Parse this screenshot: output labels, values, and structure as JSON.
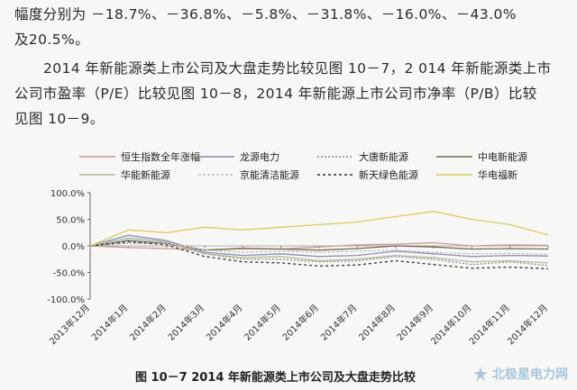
{
  "text": {
    "line1": "幅度分别为 －18.7%、－36.8%、－5.8%、－31.8%、－16.0%、－43.0%",
    "line2": "及20.5%。",
    "line3": "2014 年新能源类上市公司及大盘走势比较见图 10－7，2 014 年新能源类上市",
    "line4": "公司市盈率（P/E）比较见图 10－8，2014 年新能源上市公司市净率（P/B）比较",
    "line5": "见图 10－9。"
  },
  "figure": {
    "caption": "图 10－7   2014 年新能源类上市公司及大盘走势比较"
  },
  "watermark": {
    "label": "北极星电力网",
    "icon": "lightning-star-icon"
  },
  "chart_data": {
    "type": "line",
    "categories": [
      "2013年12月",
      "2014年1月",
      "2014年2月",
      "2014年3月",
      "2014年4月",
      "2014年5月",
      "2014年6月",
      "2014年7月",
      "2014年8月",
      "2014年9月",
      "2014年10月",
      "2014年11月",
      "2014年12月"
    ],
    "yticks": [
      "100.0%",
      "50.0%",
      "0.0%",
      "-50.0%",
      "-100.0%"
    ],
    "ylim": [
      -100,
      100
    ],
    "legend": [
      {
        "name": "恒生指数全年涨幅",
        "color": "#c99a9a",
        "dash": ""
      },
      {
        "name": "龙源电力",
        "color": "#8d8fb0",
        "dash": ""
      },
      {
        "name": "大唐新能源",
        "color": "#8a8a8a",
        "dash": "2,2"
      },
      {
        "name": "中电新能源",
        "color": "#6d6d50",
        "dash": ""
      },
      {
        "name": "华能新能源",
        "color": "#b9b7a0",
        "dash": ""
      },
      {
        "name": "京能清洁能源",
        "color": "#c2bfc8",
        "dash": "3,2"
      },
      {
        "name": "新天绿色能源",
        "color": "#333333",
        "dash": "3,3"
      },
      {
        "name": "华电福新",
        "color": "#d4cf62",
        "dash": ""
      }
    ],
    "series": [
      {
        "name": "恒生指数全年涨幅",
        "values": [
          0,
          -3,
          -5,
          -8,
          -4,
          -6,
          -2,
          2,
          3,
          6,
          0,
          2,
          1
        ]
      },
      {
        "name": "龙源电力",
        "values": [
          0,
          20,
          10,
          -12,
          -18,
          -15,
          -20,
          -18,
          -10,
          -15,
          -20,
          -18,
          -19
        ]
      },
      {
        "name": "大唐新能源",
        "values": [
          0,
          5,
          5,
          -15,
          -25,
          -25,
          -30,
          -28,
          -20,
          -25,
          -35,
          -30,
          -37
        ]
      },
      {
        "name": "中电新能源",
        "values": [
          0,
          10,
          5,
          -8,
          -5,
          -6,
          -8,
          -5,
          0,
          -2,
          -6,
          -5,
          -6
        ]
      },
      {
        "name": "华能新能源",
        "values": [
          0,
          15,
          8,
          -15,
          -22,
          -20,
          -28,
          -25,
          -18,
          -22,
          -30,
          -28,
          -32
        ]
      },
      {
        "name": "京能清洁能源",
        "values": [
          0,
          12,
          6,
          -8,
          -12,
          -10,
          -12,
          -10,
          -8,
          -12,
          -15,
          -14,
          -16
        ]
      },
      {
        "name": "新天绿色能源",
        "values": [
          0,
          8,
          2,
          -20,
          -30,
          -32,
          -38,
          -36,
          -28,
          -35,
          -42,
          -40,
          -43
        ]
      },
      {
        "name": "华电福新",
        "values": [
          0,
          30,
          25,
          35,
          30,
          35,
          40,
          45,
          55,
          65,
          50,
          40,
          20.5
        ]
      }
    ]
  }
}
